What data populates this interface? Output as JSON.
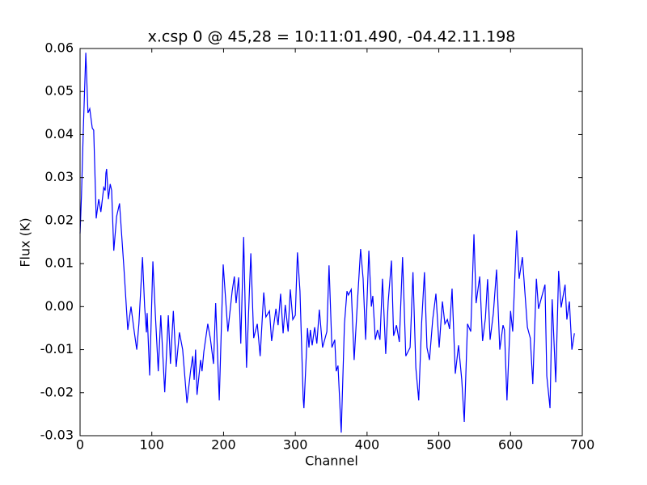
{
  "chart_data": {
    "type": "line",
    "title": "x.csp 0 @ 45,28 = 10:11:01.490, -04.42.11.198",
    "x_label": "Channel",
    "y_label": "Flux (K)",
    "x": [
      0,
      2,
      4.5,
      8,
      11,
      13.5,
      17,
      19,
      22.5,
      26,
      29,
      33,
      35,
      36,
      37,
      39.5,
      42,
      44,
      47,
      51,
      55,
      61,
      66.5,
      71,
      75.5,
      79,
      82,
      87,
      90,
      92.5,
      93.5,
      97,
      101.5,
      105,
      109,
      112.5,
      118,
      123,
      126,
      130,
      134,
      138.5,
      143,
      149,
      154,
      157,
      159,
      161,
      163,
      168,
      170,
      172.5,
      178,
      181.5,
      186,
      189,
      194,
      199.5,
      206,
      212,
      215,
      217.5,
      221,
      224,
      228,
      232,
      238,
      242,
      247,
      251,
      256,
      259,
      264,
      267,
      273,
      276,
      279.5,
      283,
      286,
      290,
      293,
      296.5,
      300,
      303,
      306.5,
      311,
      312,
      317,
      319,
      321,
      323.5,
      327,
      330,
      333.5,
      338,
      344,
      347,
      351,
      355,
      357,
      359.5,
      364,
      368.5,
      372,
      374,
      378,
      382,
      386.5,
      391,
      394.5,
      398,
      402.5,
      406,
      408,
      411.5,
      414.5,
      418,
      421.5,
      426,
      429.5,
      434,
      437,
      441,
      445,
      449.5,
      454,
      460,
      464,
      468,
      472,
      476,
      480,
      483.5,
      487,
      491.5,
      496,
      500.5,
      505,
      508.5,
      512,
      515,
      518.5,
      523,
      527.5,
      532,
      535.5,
      540,
      544.5,
      549,
      552,
      557,
      561,
      565,
      568,
      571.5,
      576,
      580.5,
      585,
      589.5,
      591.5,
      595,
      600,
      603,
      608.5,
      612,
      616.5,
      623.5,
      627.5,
      631,
      636,
      639,
      642.5,
      648,
      650.5,
      655,
      658,
      663,
      667,
      670.5,
      676,
      678.5,
      682,
      685.5,
      689
    ],
    "series": [
      {
        "color": "#0000ff",
        "values": [
          0.017,
          0.026,
          0.041,
          0.059,
          0.045,
          0.046,
          0.0415,
          0.041,
          0.0205,
          0.025,
          0.022,
          0.0277,
          0.027,
          0.031,
          0.032,
          0.025,
          0.0285,
          0.027,
          0.013,
          0.021,
          0.024,
          0.0093,
          -0.0054,
          0.0,
          -0.0058,
          -0.01,
          -0.004,
          0.0115,
          0.0,
          -0.006,
          -0.0015,
          -0.016,
          0.0105,
          -0.002,
          -0.015,
          -0.002,
          -0.0199,
          -0.002,
          -0.0133,
          -0.001,
          -0.014,
          -0.006,
          -0.01,
          -0.0224,
          -0.015,
          -0.0115,
          -0.017,
          -0.01,
          -0.0205,
          -0.0124,
          -0.015,
          -0.0105,
          -0.004,
          -0.0073,
          -0.0133,
          0.0008,
          -0.0218,
          0.0098,
          -0.0058,
          0.0036,
          0.007,
          0.0008,
          0.0068,
          -0.0086,
          0.0162,
          -0.0142,
          0.0124,
          -0.0073,
          -0.004,
          -0.0115,
          0.0033,
          -0.0024,
          -0.001,
          -0.008,
          -0.0005,
          -0.0043,
          0.003,
          -0.0062,
          0.0004,
          -0.0058,
          0.004,
          -0.003,
          -0.002,
          0.0126,
          0.0036,
          -0.0214,
          -0.0236,
          -0.005,
          -0.0095,
          -0.0054,
          -0.009,
          -0.0048,
          -0.0086,
          -0.0007,
          -0.0095,
          -0.0058,
          0.0096,
          -0.0095,
          -0.0077,
          -0.015,
          -0.0137,
          -0.0293,
          -0.004,
          0.0036,
          0.0027,
          0.004,
          -0.0124,
          0.0008,
          0.0134,
          0.0065,
          -0.0077,
          0.013,
          0.0,
          0.0025,
          -0.0077,
          -0.0054,
          -0.0077,
          0.0065,
          -0.011,
          0.0012,
          0.0107,
          -0.0068,
          -0.0043,
          -0.0082,
          0.0115,
          -0.0115,
          -0.0095,
          0.008,
          -0.0142,
          -0.0218,
          -0.004,
          0.008,
          -0.0095,
          -0.0124,
          -0.003,
          0.003,
          -0.0095,
          0.0012,
          -0.004,
          -0.003,
          -0.0052,
          0.0042,
          -0.0156,
          -0.009,
          -0.017,
          -0.0268,
          -0.004,
          -0.0058,
          0.0168,
          0.0008,
          0.007,
          -0.008,
          -0.0026,
          0.0064,
          -0.0077,
          -0.0016,
          0.0086,
          -0.01,
          -0.0043,
          -0.0054,
          -0.0218,
          -0.001,
          -0.0058,
          0.0177,
          0.0065,
          0.0115,
          -0.0048,
          -0.0073,
          -0.018,
          0.0065,
          -0.0005,
          0.0017,
          0.0051,
          -0.0161,
          -0.0236,
          0.0017,
          -0.0176,
          0.0083,
          -0.0002,
          0.0051,
          -0.003,
          0.0012,
          -0.01,
          -0.0062
        ]
      }
    ],
    "xlim": [
      0,
      700
    ],
    "xticks": [
      0,
      100,
      200,
      300,
      400,
      500,
      600,
      700
    ],
    "ylim": [
      -0.03,
      0.06
    ],
    "yticks": [
      -0.03,
      -0.02,
      -0.01,
      {
        "value": 0,
        "label": "0.00"
      },
      0.01,
      0.02,
      0.03,
      0.04,
      0.05,
      0.06
    ],
    "grid": false
  }
}
